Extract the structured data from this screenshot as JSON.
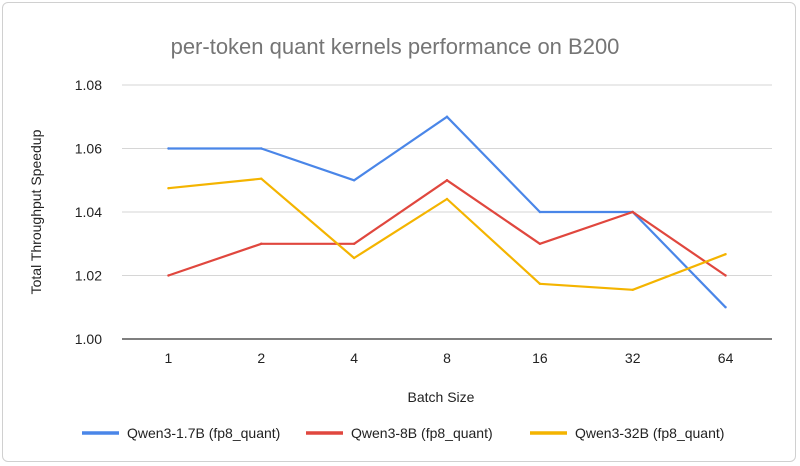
{
  "chart_data": {
    "type": "line",
    "title": "per-token quant kernels performance on B200",
    "xlabel": "Batch Size",
    "ylabel": "Total Throughput Speedup",
    "categories": [
      "1",
      "2",
      "4",
      "8",
      "16",
      "32",
      "64"
    ],
    "ylim": [
      1.0,
      1.08
    ],
    "yticks": [
      "1.00",
      "1.02",
      "1.04",
      "1.06",
      "1.08"
    ],
    "ytick_values": [
      1.0,
      1.02,
      1.04,
      1.06,
      1.08
    ],
    "grid": true,
    "legend_position": "bottom",
    "series": [
      {
        "name": "Qwen3-1.7B (fp8_quant)",
        "color": "#4a86e8",
        "values": [
          1.06,
          1.06,
          1.05,
          1.07,
          1.04,
          1.04,
          1.01
        ]
      },
      {
        "name": "Qwen3-8B (fp8_quant)",
        "color": "#e0473e",
        "values": [
          1.02,
          1.03,
          1.03,
          1.05,
          1.03,
          1.04,
          1.02
        ]
      },
      {
        "name": "Qwen3-32B (fp8_quant)",
        "color": "#f4b400",
        "values": [
          1.0475,
          1.0505,
          1.0255,
          1.0441,
          1.0174,
          1.0155,
          1.0267
        ]
      }
    ]
  }
}
